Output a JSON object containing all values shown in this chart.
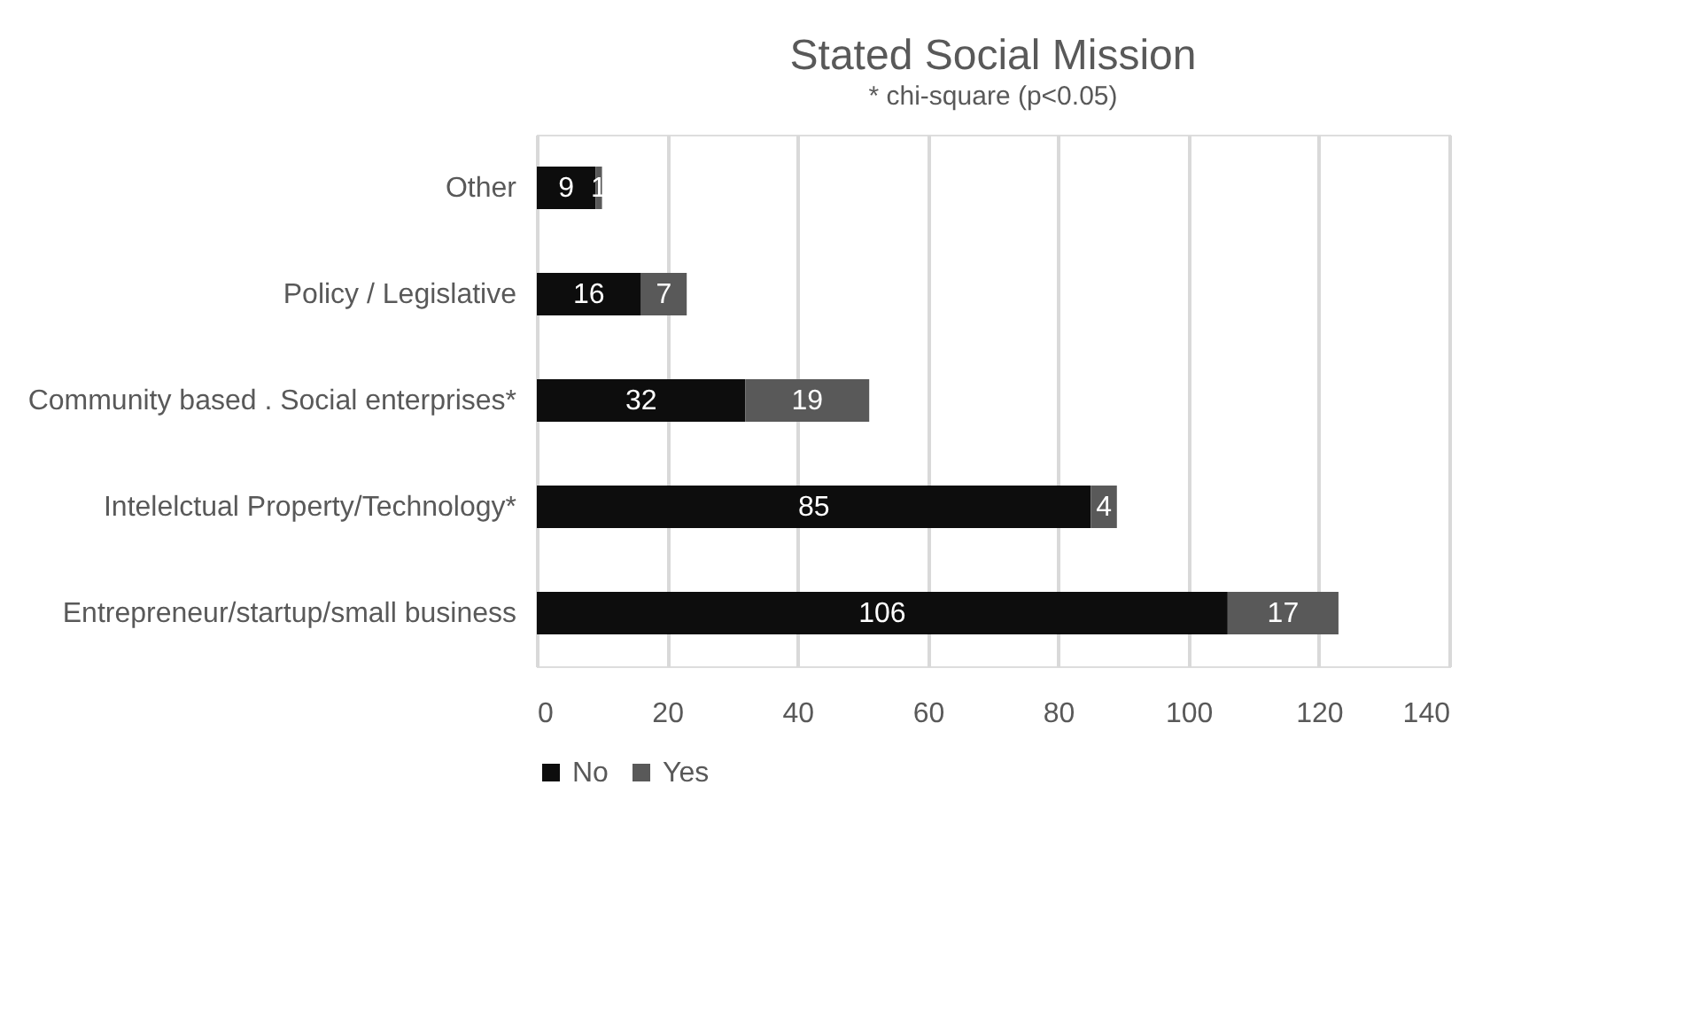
{
  "chart_data": {
    "type": "bar",
    "orientation": "horizontal",
    "stacked": true,
    "title": "Stated Social Mission",
    "subtitle": "* chi-square (p<0.05)",
    "categories": [
      "Other",
      "Policy / Legislative",
      "Community based . Social enterprises*",
      "Intelelctual Property/Technology*",
      "Entrepreneur/startup/small business"
    ],
    "series": [
      {
        "name": "No",
        "color": "#0d0d0d",
        "values": [
          9,
          16,
          32,
          85,
          106
        ]
      },
      {
        "name": "Yes",
        "color": "#595959",
        "values": [
          1,
          7,
          19,
          4,
          17
        ]
      }
    ],
    "xlim": [
      0,
      140
    ],
    "xticks": [
      0,
      20,
      40,
      60,
      80,
      100,
      120,
      140
    ],
    "grid": "x",
    "legend": "bottom",
    "data_labels": true
  }
}
